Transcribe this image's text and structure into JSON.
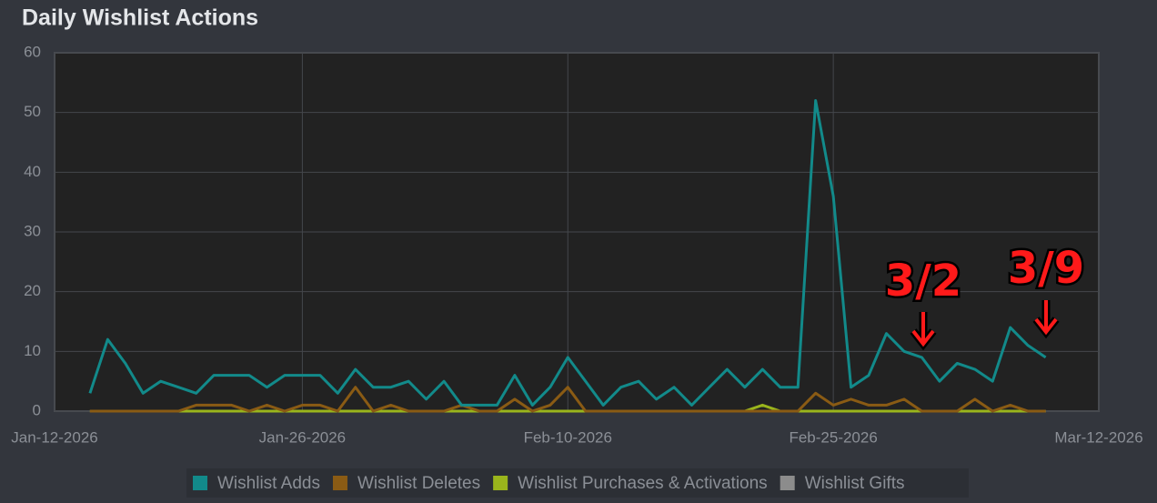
{
  "chart_data": {
    "type": "line",
    "title": "Daily Wishlist Actions",
    "x": [
      "2026-01-14",
      "2026-01-15",
      "2026-01-16",
      "2026-01-17",
      "2026-01-18",
      "2026-01-19",
      "2026-01-20",
      "2026-01-21",
      "2026-01-22",
      "2026-01-23",
      "2026-01-24",
      "2026-01-25",
      "2026-01-26",
      "2026-01-27",
      "2026-01-28",
      "2026-01-29",
      "2026-01-30",
      "2026-01-31",
      "2026-02-01",
      "2026-02-02",
      "2026-02-03",
      "2026-02-04",
      "2026-02-05",
      "2026-02-06",
      "2026-02-07",
      "2026-02-08",
      "2026-02-09",
      "2026-02-10",
      "2026-02-11",
      "2026-02-12",
      "2026-02-13",
      "2026-02-14",
      "2026-02-15",
      "2026-02-16",
      "2026-02-17",
      "2026-02-18",
      "2026-02-19",
      "2026-02-20",
      "2026-02-21",
      "2026-02-22",
      "2026-02-23",
      "2026-02-24",
      "2026-02-25",
      "2026-02-26",
      "2026-02-27",
      "2026-02-28",
      "2026-03-01",
      "2026-03-02",
      "2026-03-03",
      "2026-03-04",
      "2026-03-05",
      "2026-03-06",
      "2026-03-07",
      "2026-03-08",
      "2026-03-09"
    ],
    "series": [
      {
        "name": "Wishlist Adds",
        "color": "#128a8a",
        "values": [
          3,
          12,
          8,
          3,
          5,
          4,
          3,
          6,
          6,
          6,
          4,
          6,
          6,
          6,
          3,
          7,
          4,
          4,
          5,
          2,
          5,
          1,
          1,
          1,
          6,
          1,
          4,
          9,
          5,
          1,
          4,
          5,
          2,
          4,
          1,
          4,
          7,
          4,
          7,
          4,
          4,
          52,
          36,
          4,
          6,
          13,
          10,
          9,
          5,
          8,
          7,
          5,
          14,
          11,
          9
        ]
      },
      {
        "name": "Wishlist Deletes",
        "color": "#8a5b14",
        "values": [
          0,
          0,
          0,
          0,
          0,
          0,
          1,
          1,
          1,
          0,
          1,
          0,
          1,
          1,
          0,
          4,
          0,
          1,
          0,
          0,
          0,
          1,
          0,
          0,
          2,
          0,
          1,
          4,
          0,
          0,
          0,
          0,
          0,
          0,
          0,
          0,
          0,
          0,
          0,
          0,
          0,
          3,
          1,
          2,
          1,
          1,
          2,
          0,
          0,
          0,
          2,
          0,
          1,
          0,
          0
        ]
      },
      {
        "name": "Wishlist Purchases & Activations",
        "color": "#9ab51c",
        "values": [
          0,
          0,
          0,
          0,
          0,
          0,
          0,
          0,
          0,
          0,
          0,
          0,
          0,
          0,
          0,
          0,
          0,
          0,
          0,
          0,
          0,
          0,
          0,
          0,
          0,
          0,
          0,
          0,
          0,
          0,
          0,
          0,
          0,
          0,
          0,
          0,
          0,
          0,
          1,
          0,
          0,
          0,
          0,
          0,
          0,
          0,
          0,
          0,
          0,
          0,
          0,
          0,
          0,
          0,
          0
        ]
      },
      {
        "name": "Wishlist Gifts",
        "color": "#8c8c8c",
        "values": [
          0,
          0,
          0,
          0,
          0,
          0,
          0,
          0,
          0,
          0,
          0,
          0,
          0,
          0,
          0,
          0,
          0,
          0,
          0,
          0,
          0,
          0,
          0,
          0,
          0,
          0,
          0,
          0,
          0,
          0,
          0,
          0,
          0,
          0,
          0,
          0,
          0,
          0,
          0,
          0,
          0,
          0,
          0,
          0,
          0,
          0,
          0,
          0,
          0,
          0,
          0,
          0,
          0,
          0,
          0
        ]
      }
    ],
    "xlim": [
      "2026-01-12",
      "2026-03-12"
    ],
    "xticks": [
      {
        "value": "2026-01-12",
        "label": "Jan-12-2026"
      },
      {
        "value": "2026-01-26",
        "label": "Jan-26-2026"
      },
      {
        "value": "2026-02-10",
        "label": "Feb-10-2026"
      },
      {
        "value": "2026-02-25",
        "label": "Feb-25-2026"
      },
      {
        "value": "2026-03-12",
        "label": "Mar-12-2026"
      }
    ],
    "ylim": [
      0,
      60
    ],
    "yticks": [
      0,
      10,
      20,
      30,
      40,
      50,
      60
    ],
    "grid": true,
    "annotations": [
      "3/2",
      "3/9"
    ]
  }
}
